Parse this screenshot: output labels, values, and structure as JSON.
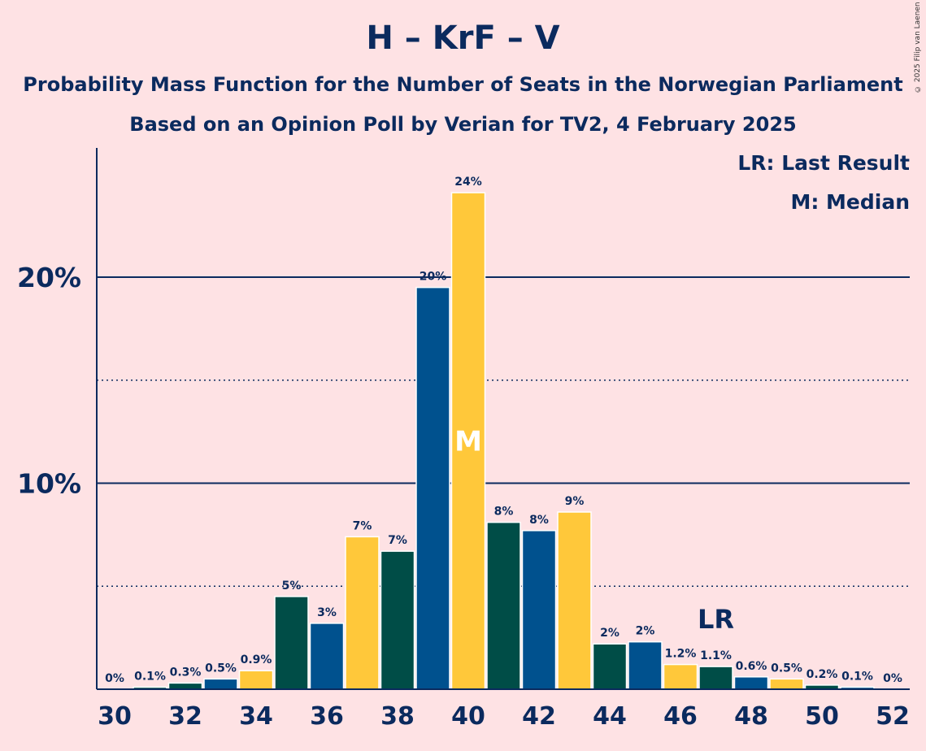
{
  "title": "H – KrF – V",
  "subtitle_1": "Probability Mass Function for the Number of Seats in the Norwegian Parliament",
  "subtitle_2": "Based on an Opinion Poll by Verian for TV2, 4 February 2025",
  "copyright": "© 2025 Filip van Laenen",
  "legend": {
    "last_result": "LR: Last Result",
    "median": "M: Median"
  },
  "colors": {
    "background": "#FEE2E4",
    "text": "#0B2A5E",
    "blue": "#00518E",
    "yellow": "#FFC83A",
    "green": "#004D47",
    "bar_outline": "#FFFFFF"
  },
  "chart_data": {
    "type": "bar",
    "title": "H – KrF – V",
    "xlabel": "",
    "ylabel": "",
    "ylim": [
      0,
      26
    ],
    "ytick_values": [
      10,
      20
    ],
    "ytick_labels": [
      "10%",
      "20%"
    ],
    "dotted_gridlines": [
      5,
      15
    ],
    "xtick_values": [
      30,
      32,
      34,
      36,
      38,
      40,
      42,
      44,
      46,
      48,
      50,
      52
    ],
    "seats": [
      30,
      31,
      32,
      33,
      34,
      35,
      36,
      37,
      38,
      39,
      40,
      41,
      42,
      43,
      44,
      45,
      46,
      47,
      48,
      49,
      50,
      51,
      52
    ],
    "values": [
      0,
      0.1,
      0.3,
      0.5,
      0.9,
      4.5,
      3.2,
      7.4,
      6.7,
      19.5,
      24.1,
      8.1,
      7.7,
      8.6,
      2.2,
      2.3,
      1.2,
      1.1,
      0.6,
      0.5,
      0.2,
      0.1,
      0
    ],
    "value_labels": [
      "0%",
      "0.1%",
      "0.3%",
      "0.5%",
      "0.9%",
      "5%",
      "3%",
      "7%",
      "7%",
      "20%",
      "24%",
      "8%",
      "8%",
      "9%",
      "2%",
      "2%",
      "1.2%",
      "1.1%",
      "0.6%",
      "0.5%",
      "0.2%",
      "0.1%",
      "0%"
    ],
    "bar_colors": [
      "blue",
      "green",
      "green",
      "blue",
      "yellow",
      "green",
      "blue",
      "yellow",
      "green",
      "blue",
      "yellow",
      "green",
      "blue",
      "yellow",
      "green",
      "blue",
      "yellow",
      "green",
      "blue",
      "yellow",
      "green",
      "blue",
      "yellow"
    ],
    "median_seat": 40,
    "median_label": "M",
    "last_result_seat": 47,
    "last_result_label": "LR"
  }
}
